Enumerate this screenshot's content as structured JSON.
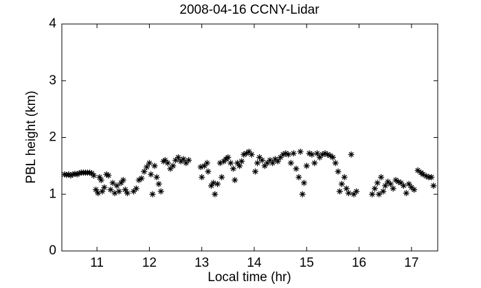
{
  "chart_data": {
    "type": "scatter",
    "title": "2008-04-16 CCNY-Lidar",
    "xlabel": "Local time (hr)",
    "ylabel": "PBL height (km)",
    "xlim": [
      10.33,
      17.5
    ],
    "ylim": [
      0,
      4
    ],
    "xticks": [
      11,
      12,
      13,
      14,
      15,
      16,
      17
    ],
    "yticks": [
      0,
      1,
      2,
      3,
      4
    ],
    "color": "#000000",
    "marker": "*",
    "x": [
      10.38,
      10.42,
      10.46,
      10.5,
      10.54,
      10.58,
      10.62,
      10.66,
      10.7,
      10.74,
      10.78,
      10.82,
      10.86,
      10.9,
      10.94,
      10.98,
      11.02,
      11.05,
      11.08,
      11.1,
      11.14,
      11.18,
      11.22,
      11.26,
      11.3,
      11.34,
      11.38,
      11.42,
      11.46,
      11.5,
      11.54,
      11.58,
      11.7,
      11.75,
      11.8,
      11.85,
      11.9,
      11.95,
      12.0,
      12.03,
      12.06,
      12.1,
      12.14,
      12.18,
      12.22,
      12.27,
      12.3,
      12.35,
      12.4,
      12.45,
      12.5,
      12.55,
      12.6,
      12.65,
      12.7,
      12.75,
      12.98,
      13.0,
      13.05,
      13.1,
      13.12,
      13.18,
      13.22,
      13.25,
      13.3,
      13.35,
      13.38,
      13.42,
      13.46,
      13.5,
      13.55,
      13.6,
      13.63,
      13.68,
      13.72,
      13.76,
      13.8,
      13.85,
      13.9,
      13.95,
      14.02,
      14.06,
      14.1,
      14.15,
      14.2,
      14.25,
      14.3,
      14.35,
      14.4,
      14.45,
      14.5,
      14.55,
      14.6,
      14.65,
      14.7,
      14.75,
      14.8,
      14.85,
      14.88,
      14.92,
      14.95,
      15.0,
      15.05,
      15.1,
      15.15,
      15.2,
      15.25,
      15.3,
      15.35,
      15.4,
      15.45,
      15.5,
      15.55,
      15.6,
      15.63,
      15.67,
      15.72,
      15.76,
      15.8,
      15.85,
      15.9,
      15.95,
      16.25,
      16.3,
      16.35,
      16.38,
      16.42,
      16.46,
      16.5,
      16.55,
      16.6,
      16.65,
      16.7,
      16.75,
      16.8,
      16.85,
      16.9,
      16.95,
      17.0,
      17.05,
      17.12,
      17.18,
      17.22,
      17.28,
      17.33,
      17.38,
      17.42
    ],
    "y": [
      1.35,
      1.34,
      1.35,
      1.33,
      1.35,
      1.36,
      1.35,
      1.37,
      1.38,
      1.38,
      1.38,
      1.38,
      1.38,
      1.37,
      1.33,
      1.08,
      1.02,
      1.3,
      1.25,
      1.05,
      1.12,
      1.35,
      1.33,
      1.08,
      1.2,
      1.02,
      1.15,
      1.05,
      1.2,
      1.25,
      1.08,
      1.02,
      1.05,
      1.1,
      1.25,
      1.28,
      1.4,
      1.48,
      1.55,
      1.35,
      1.0,
      1.5,
      1.3,
      1.18,
      1.05,
      1.58,
      1.6,
      1.55,
      1.45,
      1.5,
      1.6,
      1.65,
      1.58,
      1.62,
      1.55,
      1.6,
      1.48,
      1.3,
      1.5,
      1.55,
      1.4,
      1.15,
      1.2,
      1.0,
      1.18,
      1.55,
      1.3,
      1.58,
      1.62,
      1.65,
      1.55,
      1.45,
      1.25,
      1.55,
      1.5,
      1.58,
      1.7,
      1.72,
      1.75,
      1.7,
      1.4,
      1.55,
      1.65,
      1.6,
      1.5,
      1.55,
      1.6,
      1.55,
      1.62,
      1.58,
      1.65,
      1.7,
      1.72,
      1.7,
      1.55,
      1.72,
      1.45,
      1.3,
      1.75,
      1.0,
      1.2,
      1.5,
      1.72,
      1.7,
      1.55,
      1.72,
      1.65,
      1.7,
      1.72,
      1.7,
      1.68,
      1.65,
      1.55,
      1.4,
      1.05,
      1.18,
      1.3,
      1.1,
      1.02,
      1.7,
      1.0,
      1.05,
      1.0,
      1.1,
      1.2,
      1.0,
      1.3,
      1.05,
      1.15,
      1.22,
      1.18,
      1.1,
      1.25,
      1.22,
      1.2,
      1.15,
      1.02,
      1.18,
      1.12,
      1.08,
      1.42,
      1.38,
      1.35,
      1.32,
      1.3,
      1.3,
      1.15
    ]
  }
}
